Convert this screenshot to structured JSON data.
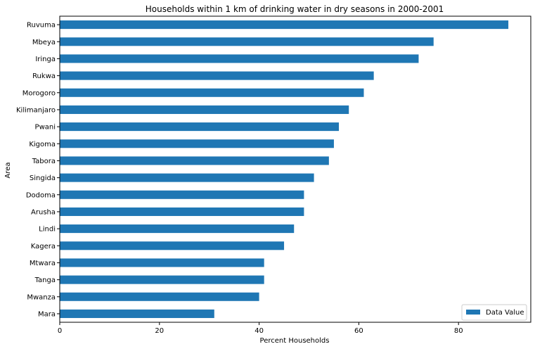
{
  "chart_data": {
    "type": "bar",
    "orientation": "horizontal",
    "title": "Households within 1 km of drinking water in dry seasons in 2000-2001",
    "xlabel": "Percent Households",
    "ylabel": "Area",
    "xlim": [
      0,
      94.5
    ],
    "xticks": [
      0,
      20,
      40,
      60,
      80
    ],
    "grid": false,
    "legend_position": "bottom-right",
    "bar_color": "#1f77b4",
    "categories": [
      "Ruvuma",
      "Mbeya",
      "Iringa",
      "Rukwa",
      "Morogoro",
      "Kilimanjaro",
      "Pwani",
      "Kigoma",
      "Tabora",
      "Singida",
      "Dodoma",
      "Arusha",
      "Lindi",
      "Kagera",
      "Mtwara",
      "Tanga",
      "Mwanza",
      "Mara"
    ],
    "series": [
      {
        "name": "Data Value",
        "values": [
          90,
          75,
          72,
          63,
          61,
          58,
          56,
          55,
          54,
          51,
          49,
          49,
          47,
          45,
          41,
          41,
          40,
          31
        ]
      }
    ]
  }
}
